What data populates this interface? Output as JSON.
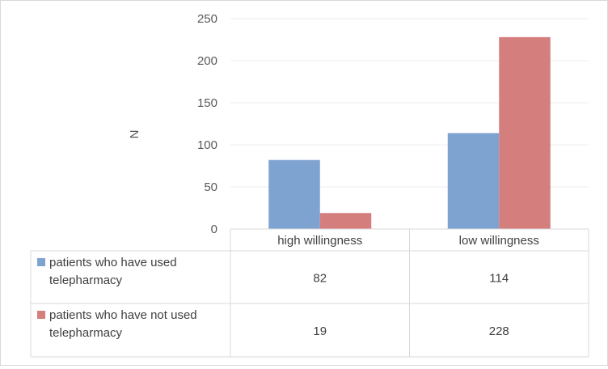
{
  "chart_data": {
    "type": "bar",
    "ylabel": "N",
    "ylim": [
      0,
      250
    ],
    "yticks": [
      0,
      50,
      100,
      150,
      200,
      250
    ],
    "categories": [
      "high willingness",
      "low willingness"
    ],
    "series": [
      {
        "name": "patients who have used telepharmacy",
        "name_lines": [
          "patients who have used",
          "telepharmacy"
        ],
        "values": [
          82,
          114
        ],
        "color": "#7fa3d1"
      },
      {
        "name": "patients who have not used telepharmacy",
        "name_lines": [
          "patients who have not used",
          "telepharmacy"
        ],
        "values": [
          19,
          228
        ],
        "color": "#d47f7e"
      }
    ],
    "grid": true,
    "legend": "data-table"
  }
}
